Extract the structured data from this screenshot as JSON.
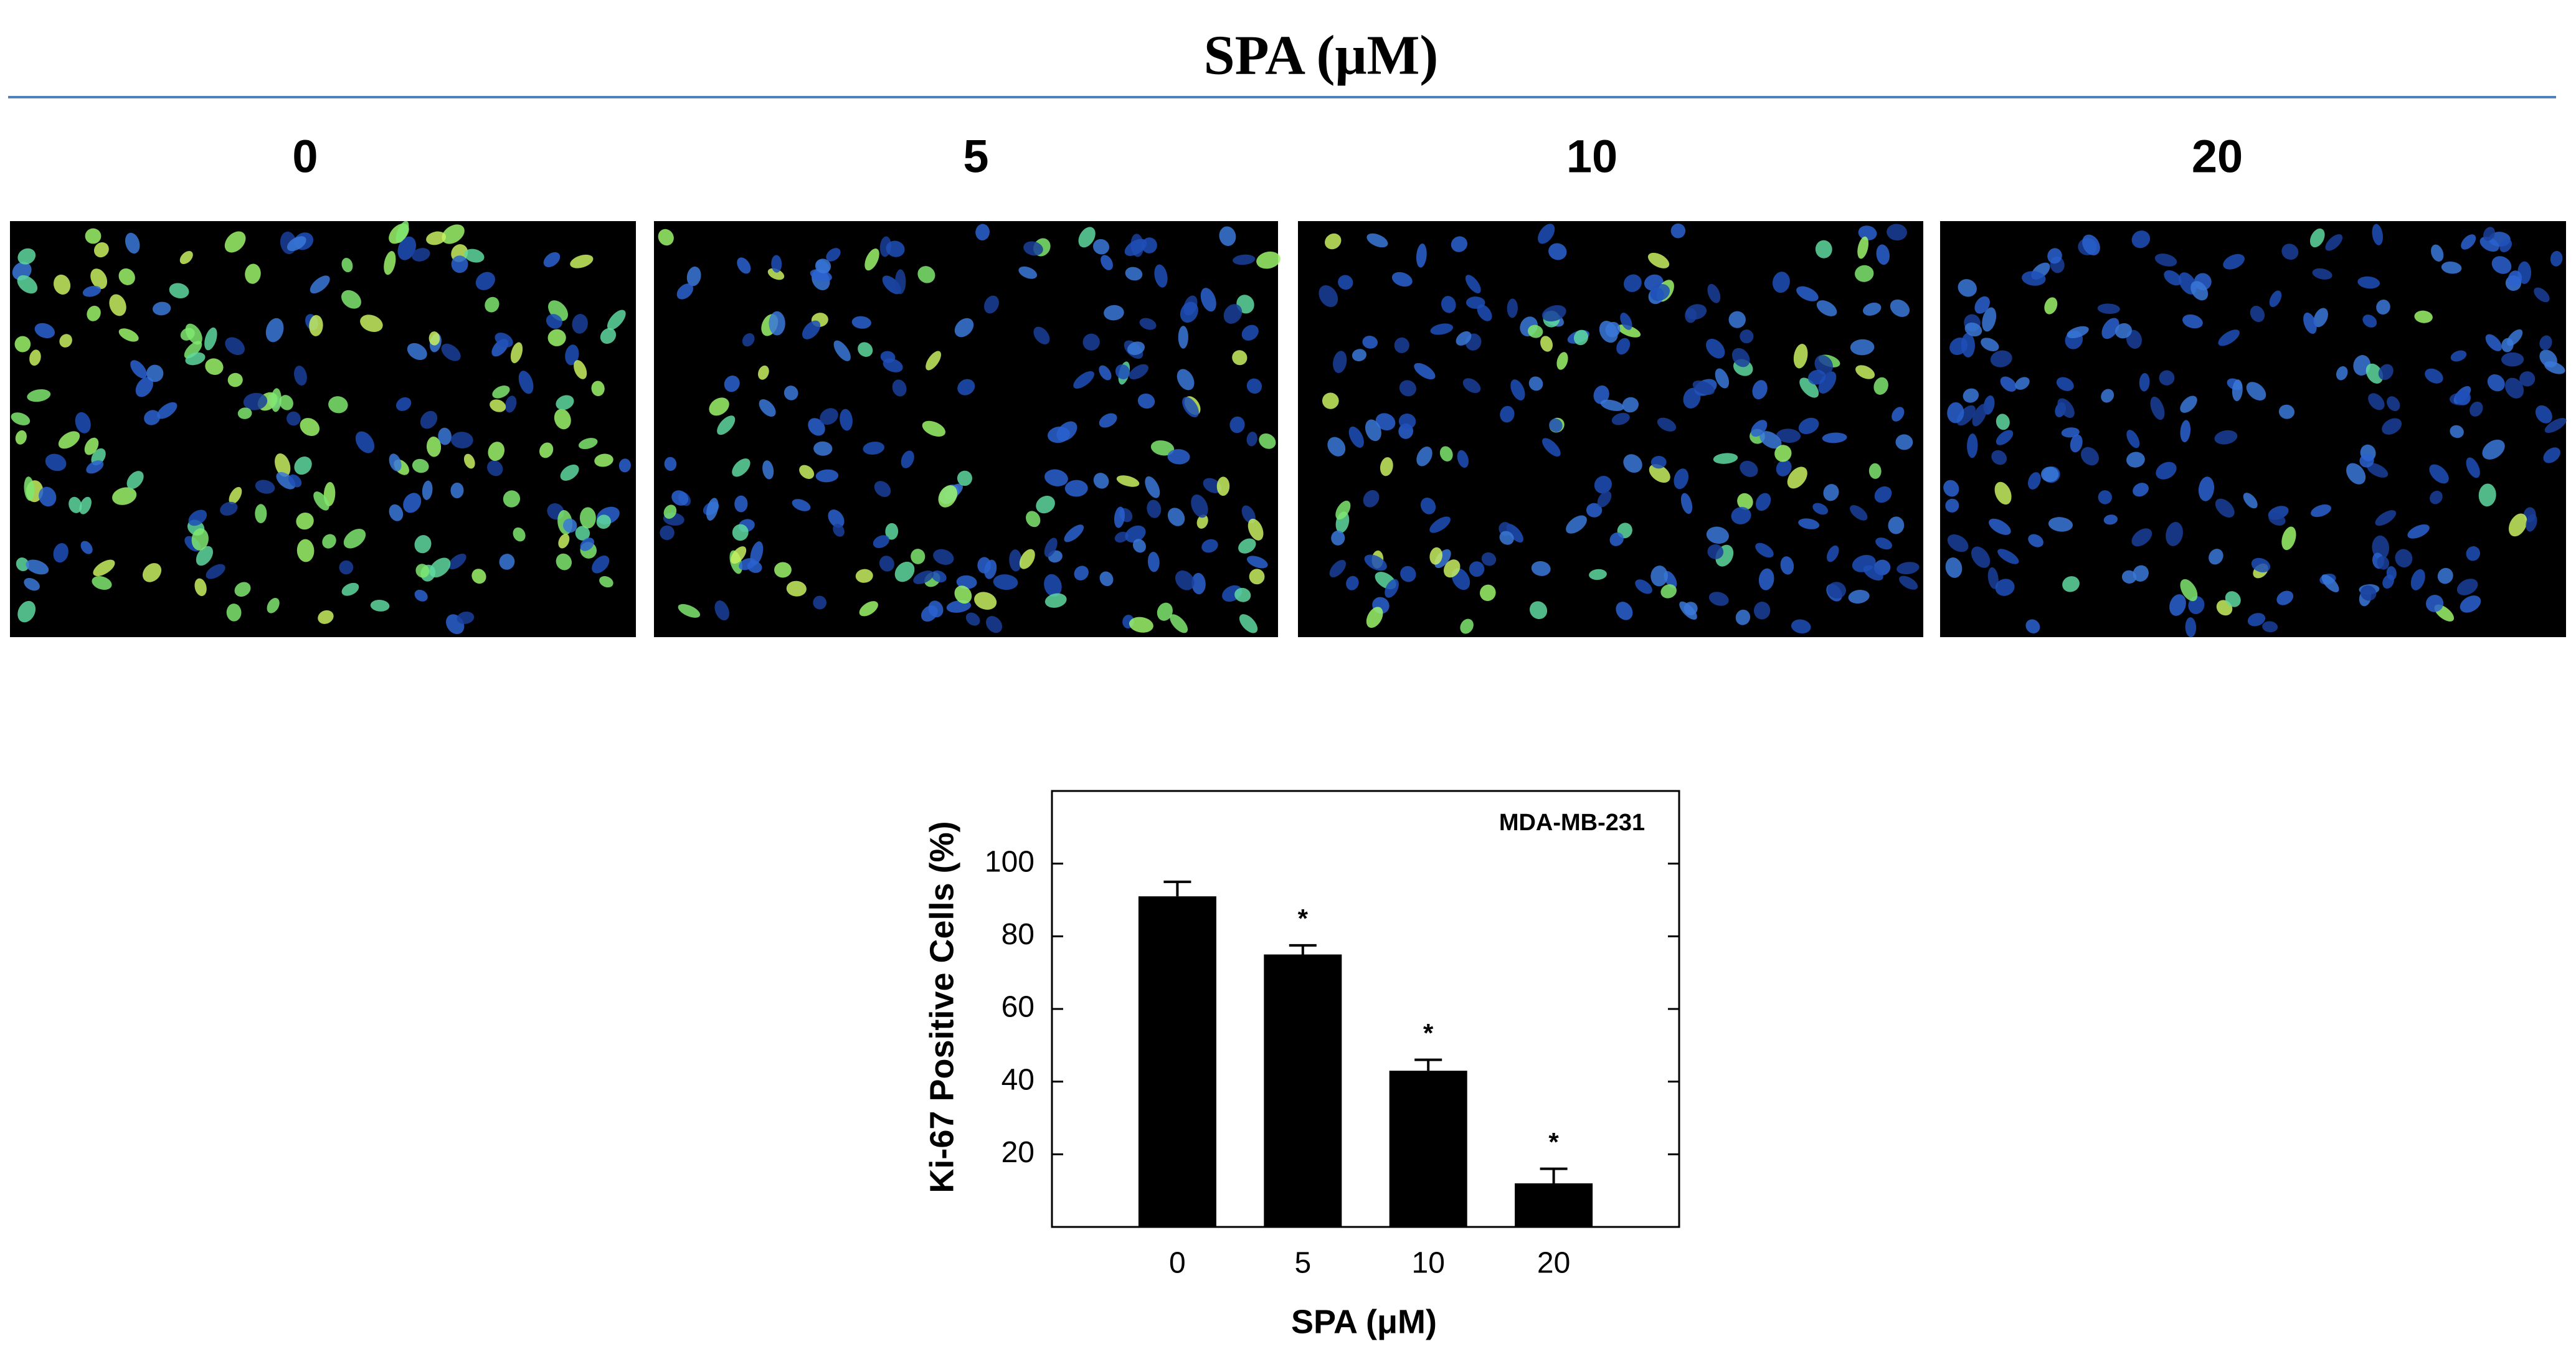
{
  "header": {
    "title": "SPA (μM)"
  },
  "panels": {
    "labels": [
      "0",
      "5",
      "10",
      "20"
    ]
  },
  "chart_data": {
    "type": "bar",
    "annotation": "MDA-MB-231",
    "xlabel": "SPA (μM)",
    "ylabel": "Ki-67 Positive Cells (%)",
    "categories": [
      "0",
      "5",
      "10",
      "20"
    ],
    "values": [
      91,
      75,
      43,
      12
    ],
    "errors": [
      4,
      2.5,
      3,
      4
    ],
    "significance": [
      null,
      "*",
      "*",
      "*"
    ],
    "color": "#000000",
    "ylim": [
      0,
      120
    ],
    "yticks": [
      20,
      40,
      60,
      80,
      100
    ]
  }
}
